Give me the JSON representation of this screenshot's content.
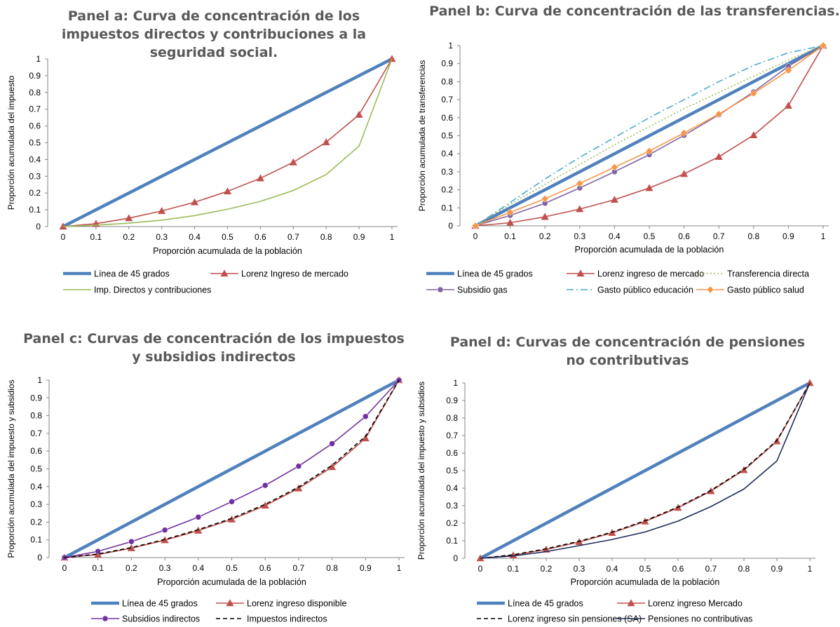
{
  "x_values": [
    0,
    0.1,
    0.2,
    0.3,
    0.4,
    0.5,
    0.6,
    0.7,
    0.8,
    0.9,
    1
  ],
  "chart_data": [
    {
      "id": "a",
      "type": "line",
      "title": "Panel a: Curva de concentración de los impuestos directos y contribuciones a la seguridad social.",
      "xlabel": "Proporción acumulada de la población",
      "ylabel": "Proporción acumulada del impuesto",
      "xlim": [
        0,
        1
      ],
      "ylim": [
        0,
        1
      ],
      "x_ticks": [
        "0",
        "0.1",
        "0.2",
        "0.3",
        "0.4",
        "0.5",
        "0.6",
        "0.7",
        "0.8",
        "0.9",
        "1"
      ],
      "y_ticks": [
        "0",
        "0.1",
        "0.2",
        "0.3",
        "0.4",
        "0.5",
        "0.6",
        "0.7",
        "0.8",
        "0.9",
        "1"
      ],
      "grid": false,
      "legend_position": "bottom",
      "series": [
        {
          "name": "Línea de 45 grados",
          "color": "#4F81BD",
          "style": "thick",
          "values": [
            0,
            0.1,
            0.2,
            0.3,
            0.4,
            0.5,
            0.6,
            0.7,
            0.8,
            0.9,
            1
          ]
        },
        {
          "name": "Lorenz Ingreso de mercado",
          "color": "#C0504D",
          "style": "solid",
          "marker": "triangle",
          "values": [
            0,
            0.017,
            0.05,
            0.093,
            0.145,
            0.21,
            0.288,
            0.383,
            0.503,
            0.667,
            1
          ]
        },
        {
          "name": "Imp. Directos y contribuciones",
          "color": "#9BBB59",
          "style": "solid",
          "values": [
            0,
            0.008,
            0.02,
            0.038,
            0.065,
            0.103,
            0.15,
            0.215,
            0.31,
            0.48,
            1
          ]
        }
      ]
    },
    {
      "id": "b",
      "type": "line",
      "title": "Panel b: Curva de concentración de las transferencias.",
      "xlabel": "Proporción acumulada de la población",
      "ylabel": "Proporción acumulada de transferencias",
      "xlim": [
        0,
        1
      ],
      "ylim": [
        0,
        1
      ],
      "x_ticks": [
        "0",
        "0.1",
        "0.2",
        "0.3",
        "0.4",
        "0.5",
        "0.6",
        "0.7",
        "0.8",
        "0.9",
        "1"
      ],
      "y_ticks": [
        "0",
        "0.1",
        "0.2",
        "0.3",
        "0.4",
        "0.5",
        "0.6",
        "0.7",
        "0.8",
        "0.9",
        "1"
      ],
      "grid": false,
      "legend_position": "bottom",
      "series": [
        {
          "name": "Línea de 45 grados",
          "color": "#4F81BD",
          "style": "thick",
          "values": [
            0,
            0.1,
            0.2,
            0.3,
            0.4,
            0.5,
            0.6,
            0.7,
            0.8,
            0.9,
            1
          ]
        },
        {
          "name": "Lorenz ingreso de mercado",
          "color": "#C0504D",
          "style": "solid",
          "marker": "triangle",
          "values": [
            0,
            0.017,
            0.05,
            0.093,
            0.145,
            0.21,
            0.288,
            0.383,
            0.503,
            0.667,
            1
          ]
        },
        {
          "name": "Transferencia directa",
          "color": "#9BBB59",
          "style": "dotted",
          "values": [
            0,
            0.12,
            0.23,
            0.34,
            0.45,
            0.55,
            0.65,
            0.74,
            0.83,
            0.92,
            1
          ]
        },
        {
          "name": "Subsidio gas",
          "color": "#8064A2",
          "style": "solid",
          "marker": "circle",
          "values": [
            0,
            0.058,
            0.125,
            0.21,
            0.3,
            0.395,
            0.502,
            0.616,
            0.743,
            0.885,
            1
          ]
        },
        {
          "name": "Gasto público educación",
          "color": "#4BACC6",
          "style": "dashdot",
          "values": [
            0,
            0.13,
            0.26,
            0.38,
            0.49,
            0.6,
            0.7,
            0.8,
            0.89,
            0.96,
            1
          ]
        },
        {
          "name": "Gasto público salud",
          "color": "#F79646",
          "style": "solid",
          "marker": "diamond",
          "values": [
            0,
            0.075,
            0.15,
            0.235,
            0.325,
            0.415,
            0.515,
            0.62,
            0.735,
            0.862,
            1
          ]
        }
      ]
    },
    {
      "id": "c",
      "type": "line",
      "title": "Panel c: Curvas de concentración de los impuestos y subsidios indirectos",
      "xlabel": "Proporción acumulada de la población",
      "ylabel": "Proporción acumulada del impuesto y subsidios",
      "xlim": [
        0,
        1
      ],
      "ylim": [
        0,
        1
      ],
      "x_ticks": [
        "0",
        "0.1",
        "0.2",
        "0.3",
        "0.4",
        "0.5",
        "0.6",
        "0.7",
        "0.8",
        "0.9",
        "1"
      ],
      "y_ticks": [
        "0",
        "0.1",
        "0.2",
        "0.3",
        "0.4",
        "0.5",
        "0.6",
        "0.7",
        "0.8",
        "0.9",
        "1"
      ],
      "grid": false,
      "legend_position": "bottom",
      "series": [
        {
          "name": "Línea de 45 grados",
          "color": "#4F81BD",
          "style": "thick",
          "values": [
            0,
            0.1,
            0.2,
            0.3,
            0.4,
            0.5,
            0.6,
            0.7,
            0.8,
            0.9,
            1
          ]
        },
        {
          "name": "Lorenz ingreso disponible",
          "color": "#C0504D",
          "style": "solid",
          "marker": "triangle",
          "values": [
            0,
            0.017,
            0.053,
            0.098,
            0.152,
            0.215,
            0.293,
            0.39,
            0.51,
            0.672,
            1
          ]
        },
        {
          "name": "Subsidios indirectos",
          "color": "#7030A0",
          "style": "solid",
          "marker": "circle",
          "values": [
            0,
            0.035,
            0.09,
            0.155,
            0.228,
            0.315,
            0.407,
            0.515,
            0.642,
            0.795,
            1
          ]
        },
        {
          "name": "Impuestos indirectos",
          "color": "#000000",
          "style": "dashed",
          "values": [
            0,
            0.02,
            0.056,
            0.102,
            0.157,
            0.221,
            0.3,
            0.397,
            0.52,
            0.683,
            1
          ]
        }
      ]
    },
    {
      "id": "d",
      "type": "line",
      "title": "Panel d: Curvas de concentración de pensiones no contributivas",
      "xlabel": "Proporción acumulada de la población",
      "ylabel": "Proporción acumulada del impuesto y subsidios",
      "xlim": [
        0,
        1
      ],
      "ylim": [
        0,
        1
      ],
      "x_ticks": [
        "0",
        "0.1",
        "0.2",
        "0.3",
        "0.4",
        "0.5",
        "0.6",
        "0.7",
        "0.8",
        "0.9",
        "1"
      ],
      "y_ticks": [
        "0",
        "0.1",
        "0.2",
        "0.3",
        "0.4",
        "0.5",
        "0.6",
        "0.7",
        "0.8",
        "0.9",
        "1"
      ],
      "grid": false,
      "legend_position": "bottom",
      "series": [
        {
          "name": "Línea de 45 grados",
          "color": "#4F81BD",
          "style": "thick",
          "values": [
            0,
            0.1,
            0.2,
            0.3,
            0.4,
            0.5,
            0.6,
            0.7,
            0.8,
            0.9,
            1
          ]
        },
        {
          "name": "Lorenz ingreso Mercado",
          "color": "#C0504D",
          "style": "solid",
          "marker": "triangle",
          "values": [
            0,
            0.017,
            0.05,
            0.093,
            0.145,
            0.21,
            0.288,
            0.383,
            0.503,
            0.667,
            1
          ]
        },
        {
          "name": "Lorenz ingreso sin pensiones (SA)",
          "color": "#000000",
          "style": "dashed",
          "values": [
            0,
            0.02,
            0.054,
            0.097,
            0.149,
            0.214,
            0.292,
            0.387,
            0.507,
            0.671,
            1
          ]
        },
        {
          "name": "Pensiones no contributivas",
          "color": "#1F2D5A",
          "style": "solid",
          "values": [
            0,
            0.013,
            0.038,
            0.072,
            0.107,
            0.15,
            0.212,
            0.295,
            0.395,
            0.555,
            1
          ]
        }
      ]
    }
  ]
}
